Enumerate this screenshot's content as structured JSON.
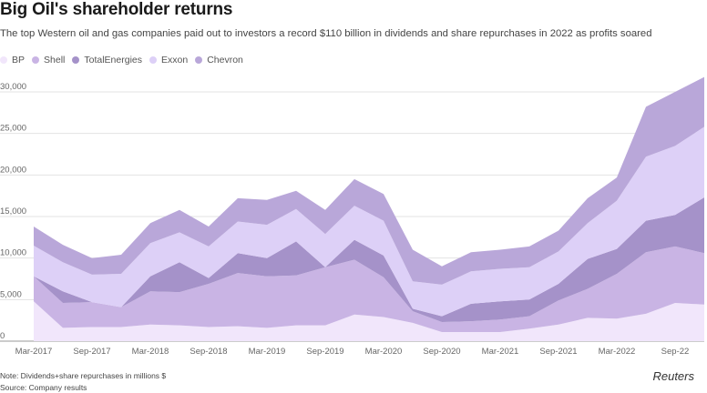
{
  "title": "Big Oil's shareholder returns",
  "subtitle": "The top Western oil and gas companies paid out to investors a record $110 billion in dividends and share repurchases in 2022 as profits soared",
  "note": "Note: Dividends+share repurchases in millions $",
  "source": "Source: Company results",
  "brand": "Reuters",
  "chart_data": {
    "type": "area",
    "stacked": true,
    "title": "Big Oil's shareholder returns",
    "ylabel": "Dividends+share repurchases in millions $",
    "ylim": [
      0,
      30000
    ],
    "y_ticks": [
      0,
      5000,
      10000,
      15000,
      20000,
      25000,
      30000
    ],
    "y_tick_labels": [
      "0",
      "5,000",
      "10,000",
      "15,000",
      "20,000",
      "25,000",
      "30,000"
    ],
    "x_tick_labels": [
      "Mar-2017",
      "Sep-2017",
      "Mar-2018",
      "Sep-2018",
      "Mar-2019",
      "Sep-2019",
      "Mar-2020",
      "Sep-2020",
      "Mar-2021",
      "Sep-2021",
      "Mar-2022",
      "Sep-22"
    ],
    "categories": [
      "Q1-2017",
      "Q2-2017",
      "Q3-2017",
      "Q4-2017",
      "Q1-2018",
      "Q2-2018",
      "Q3-2018",
      "Q4-2018",
      "Q1-2019",
      "Q2-2019",
      "Q3-2019",
      "Q4-2019",
      "Q1-2020",
      "Q2-2020",
      "Q3-2020",
      "Q4-2020",
      "Q1-2021",
      "Q2-2021",
      "Q3-2021",
      "Q4-2021",
      "Q1-2022",
      "Q2-2022",
      "Q3-2022",
      "Q4-2022"
    ],
    "series": [
      {
        "name": "BP",
        "color": "#f1e6fb",
        "values": [
          4800,
          1600,
          1700,
          1700,
          2000,
          1900,
          1700,
          1800,
          1600,
          1900,
          1900,
          3200,
          2900,
          2200,
          1100,
          1100,
          1100,
          1500,
          2000,
          2800,
          2700,
          3300,
          4600,
          4400
        ]
      },
      {
        "name": "Shell",
        "color": "#c9b4e4",
        "values": [
          3000,
          3000,
          3000,
          2400,
          4000,
          4000,
          5200,
          6400,
          6200,
          6000,
          7000,
          6600,
          4800,
          1400,
          1200,
          1300,
          1500,
          1500,
          2900,
          3500,
          5400,
          7400,
          6800,
          6200
        ]
      },
      {
        "name": "TotalEnergies",
        "color": "#a592c9",
        "values": [
          0,
          1400,
          0,
          0,
          1800,
          3600,
          700,
          2400,
          2200,
          4100,
          0,
          2400,
          2600,
          300,
          700,
          2100,
          2200,
          2000,
          2000,
          3600,
          3000,
          3800,
          3800,
          6700
        ]
      },
      {
        "name": "Exxon",
        "color": "#ddd0f7",
        "values": [
          3700,
          3500,
          3300,
          4000,
          4000,
          3600,
          3800,
          3800,
          4000,
          3900,
          4000,
          4100,
          4200,
          3300,
          3800,
          3900,
          3900,
          3900,
          3900,
          4300,
          5800,
          7700,
          8300,
          8500
        ]
      },
      {
        "name": "Chevron",
        "color": "#b9a7d9",
        "values": [
          2300,
          2100,
          2000,
          2300,
          2400,
          2700,
          2400,
          2800,
          3000,
          2200,
          2900,
          3200,
          3200,
          3800,
          2200,
          2300,
          2300,
          2500,
          2500,
          3000,
          2800,
          6000,
          6500,
          6000
        ]
      }
    ]
  }
}
